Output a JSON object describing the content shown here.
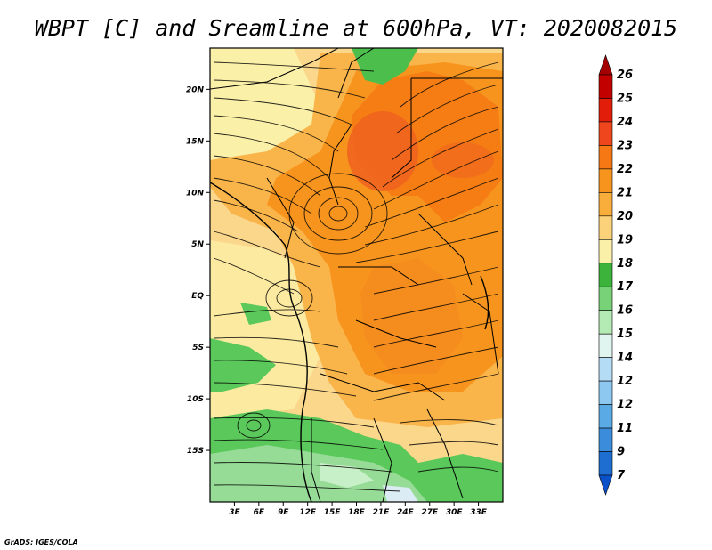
{
  "title": "WBPT [C] and Sreamline at 600hPa, VT: 2020082015",
  "credit": "GrADS: IGES/COLA",
  "map": {
    "lon_range": [
      0,
      36
    ],
    "lat_range": [
      -20,
      24
    ],
    "lon_ticks": [
      "3E",
      "6E",
      "9E",
      "12E",
      "15E",
      "18E",
      "21E",
      "24E",
      "27E",
      "30E",
      "33E"
    ],
    "lat_ticks": [
      "20N",
      "15N",
      "10N",
      "5N",
      "EQ",
      "5S",
      "10S",
      "15S"
    ]
  },
  "colorbar": {
    "levels": [
      "26",
      "25",
      "24",
      "23",
      "22",
      "21",
      "20",
      "19",
      "18",
      "17",
      "16",
      "15",
      "14",
      "12",
      "12",
      "11",
      "9",
      "7"
    ],
    "colors": [
      "#a50000",
      "#c30000",
      "#e21e0a",
      "#f0461e",
      "#f57814",
      "#f7941e",
      "#f9ae3c",
      "#fbd17a",
      "#fbf0a8",
      "#3cb43c",
      "#78d278",
      "#b4ebb4",
      "#e1f5f0",
      "#b4dcf5",
      "#8cc8f0",
      "#5aaae6",
      "#3c8cdc",
      "#1e6ed2",
      "#0a50c8"
    ]
  }
}
